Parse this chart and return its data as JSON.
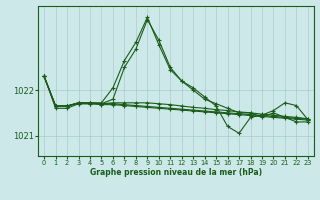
{
  "xlabel": "Graphe pression niveau de la mer (hPa)",
  "background_color": "#cce8e8",
  "grid_color": "#aacccc",
  "line_color": "#1a5c1a",
  "ylim": [
    1020.55,
    1023.85
  ],
  "xlim": [
    -0.5,
    23.5
  ],
  "yticks": [
    1021,
    1022
  ],
  "xticks": [
    0,
    1,
    2,
    3,
    4,
    5,
    6,
    7,
    8,
    9,
    10,
    11,
    12,
    13,
    14,
    15,
    16,
    17,
    18,
    19,
    20,
    21,
    22,
    23
  ],
  "hours": [
    0,
    1,
    2,
    3,
    4,
    5,
    6,
    7,
    8,
    9,
    10,
    11,
    12,
    13,
    14,
    15,
    16,
    17,
    18,
    19,
    20,
    21,
    22,
    23
  ],
  "series": [
    [
      1022.3,
      1021.6,
      1021.6,
      1021.7,
      1021.7,
      1021.7,
      1021.8,
      1022.5,
      1022.9,
      1023.55,
      1023.1,
      1022.5,
      1022.2,
      1022.0,
      1021.8,
      1021.7,
      1021.6,
      1021.5,
      1021.5,
      1021.4,
      1021.5,
      1021.4,
      1021.3,
      1021.3
    ],
    [
      1022.3,
      1021.65,
      1021.65,
      1021.72,
      1021.72,
      1021.72,
      1022.05,
      1022.65,
      1023.05,
      1023.6,
      1023.0,
      1022.45,
      1022.2,
      1022.05,
      1021.85,
      1021.65,
      1021.2,
      1021.05,
      1021.4,
      1021.45,
      1021.55,
      1021.72,
      1021.66,
      1021.35
    ],
    [
      1022.3,
      1021.65,
      1021.65,
      1021.72,
      1021.72,
      1021.7,
      1021.72,
      1021.72,
      1021.72,
      1021.72,
      1021.7,
      1021.68,
      1021.65,
      1021.62,
      1021.6,
      1021.57,
      1021.55,
      1021.52,
      1021.5,
      1021.47,
      1021.45,
      1021.42,
      1021.4,
      1021.37
    ],
    [
      1022.3,
      1021.65,
      1021.65,
      1021.72,
      1021.72,
      1021.7,
      1021.7,
      1021.68,
      1021.66,
      1021.64,
      1021.62,
      1021.6,
      1021.58,
      1021.56,
      1021.54,
      1021.52,
      1021.5,
      1021.48,
      1021.46,
      1021.44,
      1021.42,
      1021.4,
      1021.38,
      1021.36
    ],
    [
      1022.3,
      1021.65,
      1021.65,
      1021.7,
      1021.7,
      1021.68,
      1021.68,
      1021.66,
      1021.64,
      1021.62,
      1021.6,
      1021.58,
      1021.56,
      1021.54,
      1021.52,
      1021.5,
      1021.48,
      1021.46,
      1021.44,
      1021.42,
      1021.4,
      1021.38,
      1021.36,
      1021.34
    ]
  ]
}
